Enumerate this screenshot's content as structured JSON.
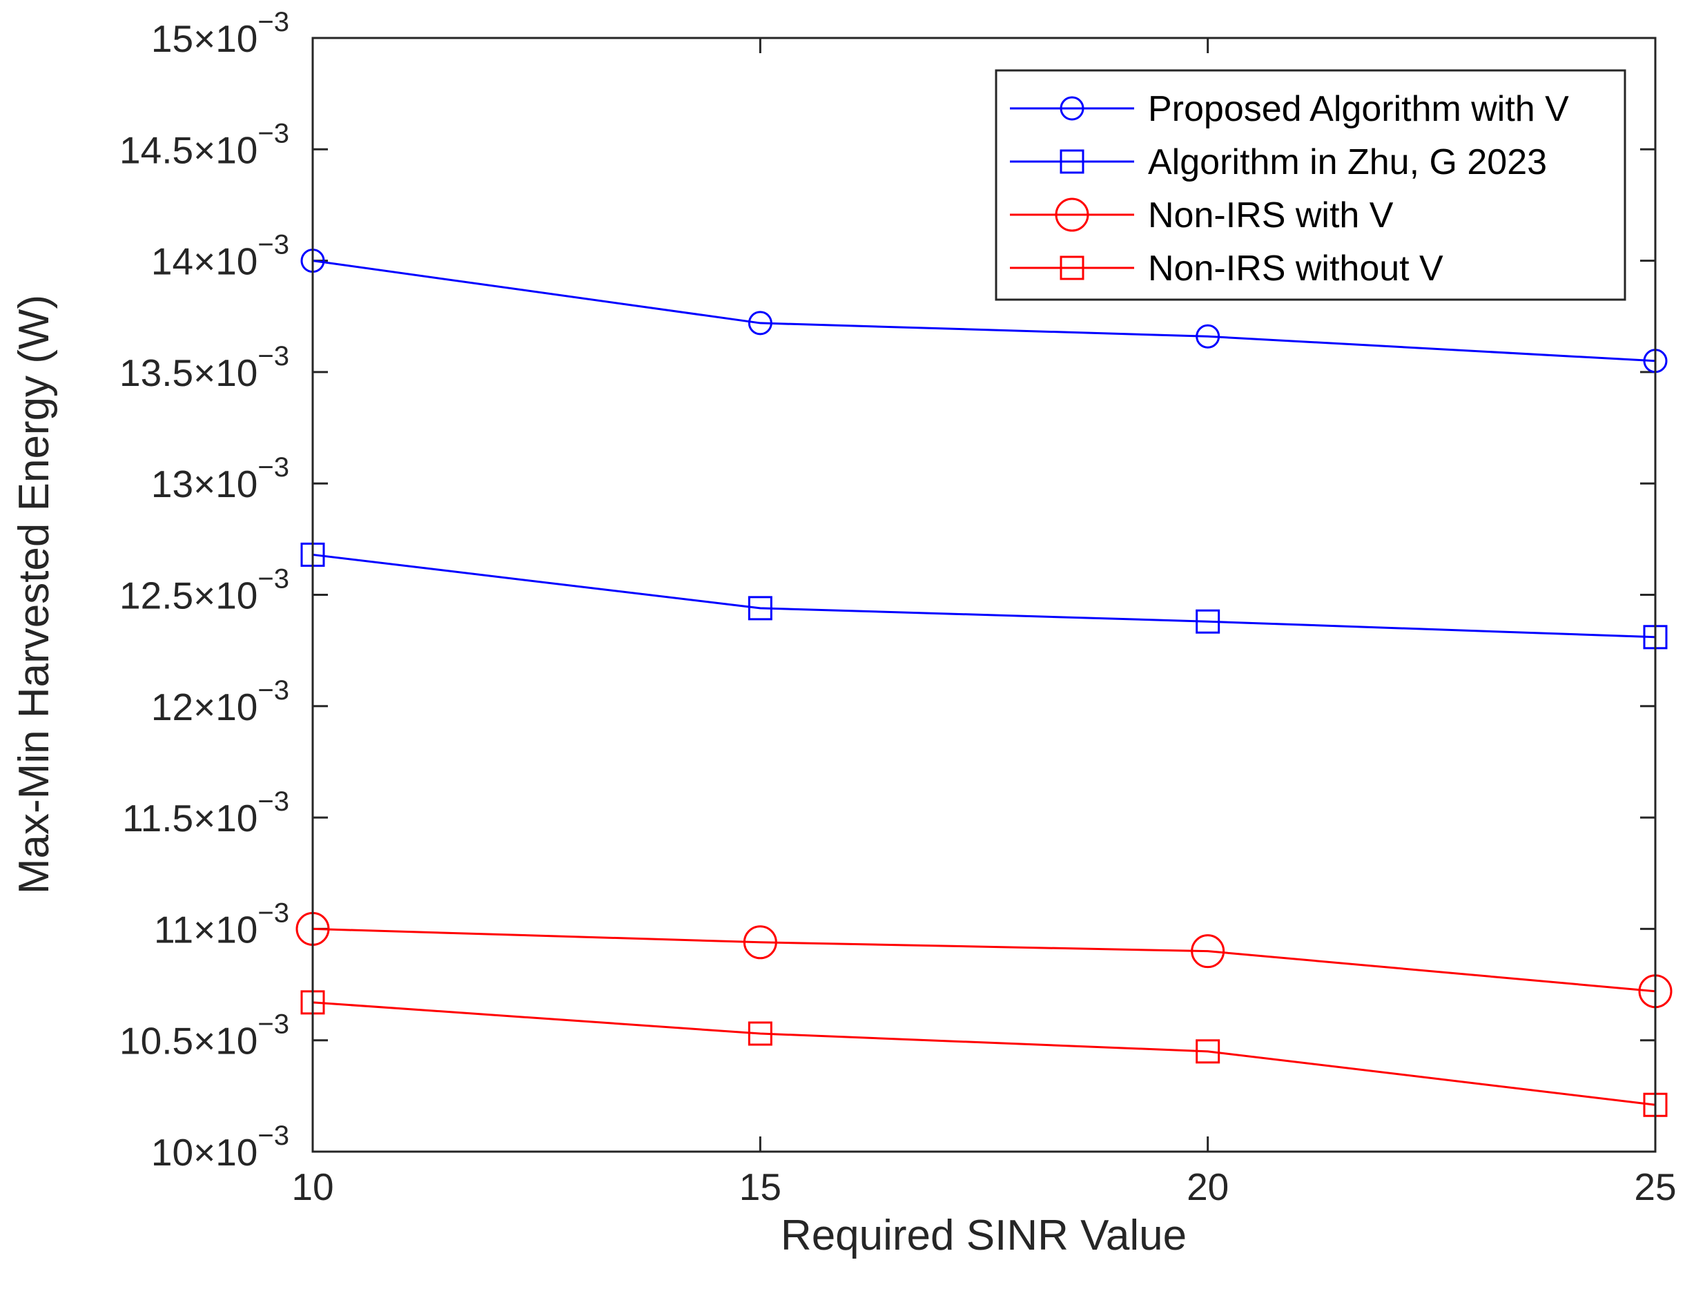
{
  "chart_data": {
    "type": "line",
    "title": "",
    "xlabel": "Required SINR Value",
    "ylabel": "Max-Min Harvested Energy (W)",
    "xlim": [
      10,
      25
    ],
    "ylim": [
      0.01,
      0.015
    ],
    "x_ticks": [
      10,
      15,
      20,
      25
    ],
    "x_tick_labels": [
      "10",
      "15",
      "20",
      "25"
    ],
    "y_ticks": [
      0.01,
      0.0105,
      0.011,
      0.0115,
      0.012,
      0.0125,
      0.013,
      0.0135,
      0.014,
      0.0145,
      0.015
    ],
    "y_tick_mantissas": [
      "10",
      "10.5",
      "11",
      "11.5",
      "12",
      "12.5",
      "13",
      "13.5",
      "14",
      "14.5",
      "15"
    ],
    "y_tick_exponent_base": "×10",
    "y_tick_exponent": "−3",
    "legend_position": "top-right",
    "series": [
      {
        "name": "Proposed Algorithm with V",
        "color": "#0000ff",
        "marker": "circle",
        "x": [
          10,
          15,
          20,
          25
        ],
        "values": [
          0.014,
          0.01372,
          0.01366,
          0.01355
        ]
      },
      {
        "name": "Algorithm in Zhu, G 2023",
        "color": "#0000ff",
        "marker": "square",
        "x": [
          10,
          15,
          20,
          25
        ],
        "values": [
          0.01268,
          0.01244,
          0.01238,
          0.01231
        ]
      },
      {
        "name": "Non-IRS with V",
        "color": "#ff0000",
        "marker": "circle-large",
        "x": [
          10,
          15,
          20,
          25
        ],
        "values": [
          0.011,
          0.01094,
          0.0109,
          0.01072
        ]
      },
      {
        "name": "Non-IRS without V",
        "color": "#ff0000",
        "marker": "square",
        "x": [
          10,
          15,
          20,
          25
        ],
        "values": [
          0.01067,
          0.01053,
          0.01045,
          0.01021
        ]
      }
    ]
  }
}
